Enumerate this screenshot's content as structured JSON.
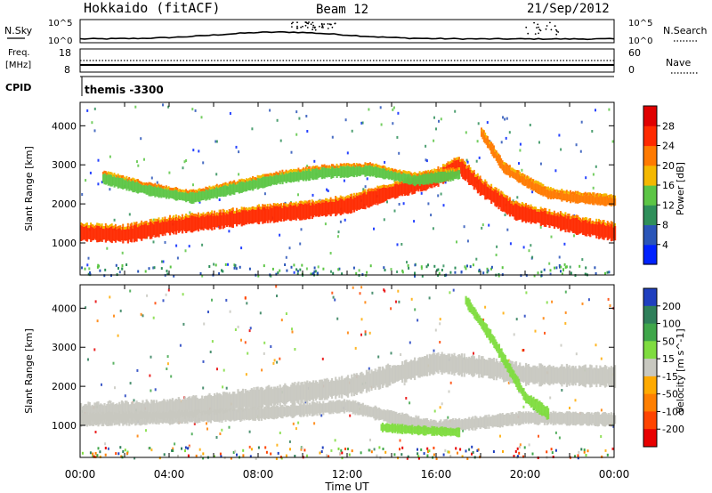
{
  "header": {
    "title": "Hokkaido (fitACF)",
    "beam": "Beam 12",
    "date": "21/Sep/2012"
  },
  "strips": {
    "nsky": {
      "left_label": "N.Sky",
      "right_label": "N.Search",
      "left_ticks": [
        "10^5",
        "10^0"
      ],
      "right_ticks": [
        "10^5",
        "10^0"
      ]
    },
    "freq": {
      "left_label_1": "Freq.",
      "left_label_2": "[MHz]",
      "right_label": "Nave",
      "left_ticks": [
        "18",
        "8"
      ],
      "right_ticks": [
        "60",
        "0"
      ]
    },
    "cpid": {
      "label": "CPID",
      "value": "themis -3300"
    }
  },
  "chart_data": [
    {
      "type": "heatmap",
      "title": "",
      "ylabel": "Slant Range [km]",
      "xlabel": "",
      "ylim": [
        180,
        4600
      ],
      "yticks": [
        "1000",
        "2000",
        "3000",
        "4000"
      ],
      "colorbar": {
        "label": "Power [dB]",
        "ticks": [
          "4",
          "8",
          "12",
          "16",
          "20",
          "24",
          "28"
        ],
        "colors": [
          "#0022ff",
          "#2a55b8",
          "#2f8f5a",
          "#5cc545",
          "#f4b800",
          "#ff7a00",
          "#ff2a00",
          "#e00000"
        ]
      },
      "bands": [
        {
          "name": "main",
          "points": [
            [
              0,
              1250
            ],
            [
              2,
              1200
            ],
            [
              4,
              1420
            ],
            [
              6,
              1550
            ],
            [
              8,
              1700
            ],
            [
              10,
              1800
            ],
            [
              12,
              1950
            ],
            [
              14,
              2300
            ],
            [
              16,
              2650
            ],
            [
              17,
              2950
            ],
            [
              18,
              2400
            ],
            [
              19.5,
              1800
            ],
            [
              21,
              1600
            ],
            [
              22.5,
              1400
            ],
            [
              24,
              1250
            ]
          ],
          "width": 380,
          "color": "#ff2a00"
        },
        {
          "name": "upper",
          "points": [
            [
              1,
              2650
            ],
            [
              3,
              2350
            ],
            [
              5,
              2150
            ],
            [
              7,
              2400
            ],
            [
              9,
              2650
            ],
            [
              11,
              2800
            ],
            [
              13,
              2850
            ],
            [
              15,
              2600
            ],
            [
              17,
              2750
            ]
          ],
          "width": 260,
          "color": "#5cc545"
        },
        {
          "name": "late",
          "points": [
            [
              18,
              3800
            ],
            [
              19,
              2900
            ],
            [
              20,
              2550
            ],
            [
              21,
              2250
            ],
            [
              22,
              2150
            ],
            [
              24,
              2050
            ]
          ],
          "width": 220,
          "color": "#ff7a00"
        }
      ]
    },
    {
      "type": "heatmap",
      "title": "",
      "ylabel": "Slant Range [km]",
      "xlabel": "Time UT",
      "ylim": [
        180,
        4600
      ],
      "yticks": [
        "1000",
        "2000",
        "3000",
        "4000"
      ],
      "xticks": [
        "00:00",
        "04:00",
        "08:00",
        "12:00",
        "16:00",
        "20:00",
        "00:00"
      ],
      "colorbar": {
        "label": "Velocity [m s^-1]",
        "ticks": [
          "200",
          "100",
          "50",
          "15",
          "-15",
          "-50",
          "-100",
          "-200"
        ],
        "colors": [
          "#1f3fbf",
          "#2f7f5a",
          "#3fa64a",
          "#7fdc3f",
          "#c8c8c0",
          "#ffaa00",
          "#ff7f00",
          "#ff4400",
          "#e80000"
        ]
      },
      "bands": [
        {
          "name": "main",
          "points": [
            [
              0,
              1300
            ],
            [
              4,
              1400
            ],
            [
              8,
              1700
            ],
            [
              12,
              2000
            ],
            [
              16,
              2600
            ],
            [
              18,
              2500
            ],
            [
              20,
              2300
            ],
            [
              24,
              2250
            ]
          ],
          "width": 500,
          "color": "#c8c8c0"
        },
        {
          "name": "low",
          "points": [
            [
              0,
              1150
            ],
            [
              4,
              1200
            ],
            [
              8,
              1300
            ],
            [
              12,
              1500
            ],
            [
              14,
              1200
            ],
            [
              16,
              950
            ],
            [
              20,
              1200
            ],
            [
              24,
              1150
            ]
          ],
          "width": 320,
          "color": "#c8c8c0"
        },
        {
          "name": "green-streak",
          "points": [
            [
              17.3,
              4200
            ],
            [
              18.5,
              3200
            ],
            [
              19.5,
              2200
            ],
            [
              20,
              1700
            ],
            [
              21,
              1300
            ]
          ],
          "width": 300,
          "color": "#7fdc3f"
        },
        {
          "name": "green-low",
          "points": [
            [
              13.5,
              950
            ],
            [
              15,
              880
            ],
            [
              17,
              820
            ]
          ],
          "width": 220,
          "color": "#7fdc3f"
        }
      ]
    }
  ]
}
